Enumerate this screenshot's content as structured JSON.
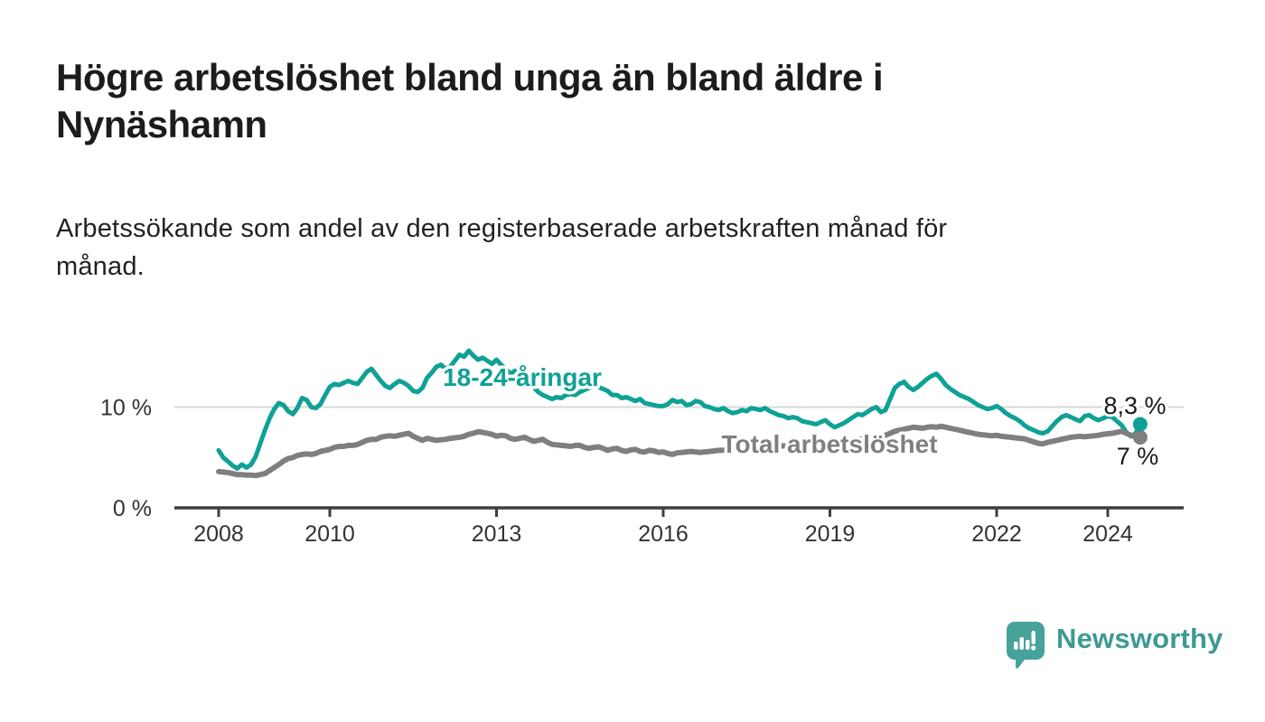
{
  "title": {
    "text": "Högre arbetslöshet bland unga än bland äldre i Nynäshamn",
    "lines": [
      "Högre arbetslöshet bland unga än bland äldre i",
      "Nynäshamn"
    ]
  },
  "subtitle": {
    "text": "Arbetssökande som andel av den registerbaserade arbetskraften månad för månad.",
    "lines": [
      "Arbetssökande som andel av den registerbaserade arbetskraften månad för",
      "månad."
    ]
  },
  "colors": {
    "teal_line": "#0fa195",
    "gray_line": "#7f7f7f",
    "logo_teal": "#47a29b",
    "brand_text_teal": "#3e9a93",
    "axis": "#3f3f3f",
    "grid": "#d9d9d9",
    "tick_text": "#333333",
    "title_text": "#1c1c1c"
  },
  "chart_data": {
    "type": "line",
    "title": "",
    "xlabel": "",
    "ylabel": "",
    "ylim": [
      0,
      16.5
    ],
    "xlim": [
      2008,
      2025.1
    ],
    "grid": "single horizontal gridline at 10 %",
    "legend_position": "inline labels on lines",
    "x_ticks": [
      {
        "value": 2008,
        "label": "2008"
      },
      {
        "value": 2010,
        "label": "2010"
      },
      {
        "value": 2013,
        "label": "2013"
      },
      {
        "value": 2016,
        "label": "2016"
      },
      {
        "value": 2019,
        "label": "2019"
      },
      {
        "value": 2022,
        "label": "2022"
      },
      {
        "value": 2024,
        "label": "2024"
      }
    ],
    "y_ticks": [
      {
        "value": 0,
        "label": "0 %"
      },
      {
        "value": 10,
        "label": "10 %"
      }
    ],
    "x_unit": "year (monthly data)",
    "y_unit": "percent",
    "series": [
      {
        "name": "18-24-åringar",
        "color": "#0fa195",
        "end_label": "8,3 %",
        "end_value": 8.3,
        "start_year": 2008,
        "monthly_values": [
          5.7,
          5.0,
          4.6,
          4.2,
          3.9,
          4.3,
          4.0,
          4.3,
          5.1,
          6.4,
          7.7,
          8.9,
          9.8,
          10.4,
          10.2,
          9.6,
          9.3,
          9.9,
          10.9,
          10.7,
          10.0,
          9.9,
          10.3,
          11.2,
          12.0,
          12.3,
          12.2,
          12.4,
          12.6,
          12.4,
          12.3,
          12.9,
          13.5,
          13.8,
          13.2,
          12.6,
          12.1,
          11.9,
          12.3,
          12.6,
          12.4,
          12.1,
          11.6,
          11.5,
          11.9,
          12.9,
          13.4,
          14.0,
          14.2,
          13.8,
          14.0,
          14.6,
          15.2,
          15.0,
          15.6,
          15.1,
          14.7,
          14.9,
          14.6,
          14.3,
          14.7,
          14.2,
          13.8,
          13.3,
          13.6,
          13.2,
          12.9,
          12.5,
          12.0,
          11.5,
          11.2,
          11.0,
          10.8,
          11.0,
          10.9,
          11.2,
          11.3,
          11.2,
          11.5,
          11.7,
          11.9,
          12.1,
          12.0,
          11.8,
          11.6,
          11.2,
          11.2,
          10.9,
          11.0,
          10.8,
          10.6,
          10.8,
          10.4,
          10.3,
          10.2,
          10.1,
          10.1,
          10.3,
          10.7,
          10.5,
          10.6,
          10.2,
          10.3,
          10.6,
          10.5,
          10.1,
          10.0,
          9.8,
          9.7,
          9.9,
          9.6,
          9.4,
          9.5,
          9.7,
          9.6,
          9.9,
          9.8,
          9.7,
          9.9,
          9.6,
          9.4,
          9.2,
          9.1,
          8.9,
          9.0,
          8.9,
          8.6,
          8.5,
          8.4,
          8.3,
          8.5,
          8.7,
          8.3,
          8.0,
          8.2,
          8.4,
          8.7,
          9.0,
          9.3,
          9.2,
          9.5,
          9.8,
          10.0,
          9.5,
          9.7,
          10.8,
          11.9,
          12.3,
          12.5,
          12.0,
          11.7,
          12.0,
          12.4,
          12.8,
          13.1,
          13.3,
          12.8,
          12.2,
          11.8,
          11.5,
          11.2,
          11.0,
          10.8,
          10.5,
          10.2,
          10.0,
          9.8,
          9.9,
          10.1,
          9.8,
          9.4,
          9.1,
          8.9,
          8.6,
          8.2,
          7.9,
          7.7,
          7.5,
          7.4,
          7.6,
          8.1,
          8.6,
          9.0,
          9.2,
          9.0,
          8.8,
          8.6,
          9.1,
          9.2,
          8.9,
          8.7,
          8.9,
          9.1,
          9.0,
          8.6,
          8.2,
          7.5,
          7.1,
          7.4,
          8.3
        ]
      },
      {
        "name": "Total arbetslöshet",
        "color": "#7f7f7f",
        "end_label": "7 %",
        "end_value": 7.0,
        "start_year": 2008,
        "monthly_values": [
          3.6,
          3.55,
          3.5,
          3.4,
          3.3,
          3.3,
          3.25,
          3.25,
          3.2,
          3.3,
          3.4,
          3.7,
          4.0,
          4.3,
          4.65,
          4.9,
          5.0,
          5.2,
          5.3,
          5.35,
          5.3,
          5.4,
          5.6,
          5.7,
          5.8,
          6.0,
          6.1,
          6.1,
          6.2,
          6.2,
          6.3,
          6.5,
          6.7,
          6.8,
          6.8,
          7.0,
          7.1,
          7.15,
          7.1,
          7.2,
          7.3,
          7.4,
          7.1,
          6.9,
          6.7,
          6.9,
          6.8,
          6.7,
          6.75,
          6.8,
          6.9,
          6.95,
          7.0,
          7.1,
          7.3,
          7.4,
          7.55,
          7.5,
          7.4,
          7.3,
          7.1,
          7.2,
          7.15,
          6.9,
          6.8,
          6.9,
          7.0,
          6.8,
          6.6,
          6.7,
          6.8,
          6.5,
          6.3,
          6.25,
          6.2,
          6.15,
          6.1,
          6.2,
          6.2,
          6.0,
          5.9,
          6.0,
          6.05,
          5.9,
          5.7,
          5.85,
          5.9,
          5.7,
          5.6,
          5.75,
          5.8,
          5.6,
          5.55,
          5.7,
          5.65,
          5.5,
          5.55,
          5.4,
          5.3,
          5.45,
          5.5,
          5.55,
          5.6,
          5.55,
          5.5,
          5.55,
          5.6,
          5.65,
          5.7,
          5.72,
          5.75,
          5.8,
          5.82,
          5.85,
          5.9,
          5.92,
          5.95,
          6.0,
          6.02,
          6.05,
          6.1,
          6.12,
          6.15,
          6.2,
          6.22,
          6.25,
          6.3,
          6.32,
          6.35,
          6.4,
          6.42,
          6.45,
          6.5,
          6.52,
          6.55,
          6.6,
          6.65,
          6.7,
          6.8,
          6.85,
          6.9,
          7.0,
          7.05,
          7.1,
          7.2,
          7.4,
          7.6,
          7.7,
          7.8,
          7.9,
          8.0,
          7.95,
          7.9,
          8.0,
          8.05,
          8.0,
          8.1,
          8.0,
          7.9,
          7.8,
          7.7,
          7.6,
          7.5,
          7.4,
          7.3,
          7.25,
          7.2,
          7.15,
          7.2,
          7.1,
          7.05,
          7.0,
          6.95,
          6.9,
          6.85,
          6.7,
          6.55,
          6.4,
          6.35,
          6.5,
          6.6,
          6.7,
          6.8,
          6.9,
          7.0,
          7.05,
          7.1,
          7.05,
          7.1,
          7.15,
          7.2,
          7.3,
          7.35,
          7.4,
          7.5,
          7.6,
          7.4,
          7.2,
          7.1,
          7.0
        ]
      }
    ]
  },
  "footer": {
    "brand": "Newsworthy",
    "logo_icon": "newsworthy-speech-bubble-barchart-icon"
  }
}
